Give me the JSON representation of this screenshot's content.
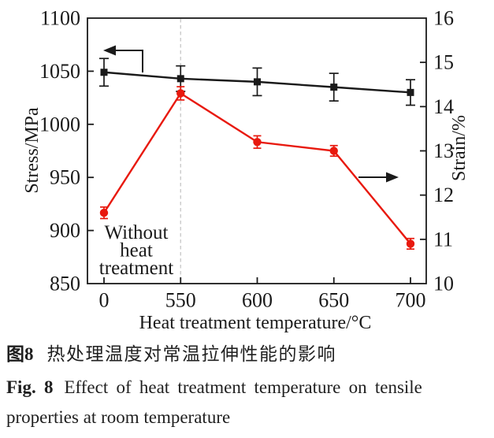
{
  "caption": {
    "zh_label": "图8",
    "zh_text": "热处理温度对常温拉伸性能的影响",
    "en_label": "Fig. 8",
    "en_line1": "Effect of heat treatment temperature on tensile",
    "en_line2": "properties at room temperature"
  },
  "chart_data": {
    "type": "line",
    "title": "",
    "xlabel": "Heat treatment temperature/°C",
    "ylabel_left": "Stress/MPa",
    "ylabel_right": "Strain/%",
    "categories": [
      "0",
      "550",
      "600",
      "650",
      "700"
    ],
    "x_axis_categorical": true,
    "ylim_left": [
      850,
      1100
    ],
    "yticks_left": [
      850,
      900,
      950,
      1000,
      1050,
      1100
    ],
    "ylim_right": [
      10,
      16
    ],
    "yticks_right": [
      10,
      11,
      12,
      13,
      14,
      15,
      16
    ],
    "grid": false,
    "legend": "none",
    "dashed_vline_at_category": "550",
    "annotation": {
      "lines": [
        "Without",
        "heat",
        "treatment"
      ]
    },
    "series": [
      {
        "name": "Stress",
        "axis": "left",
        "marker": "square",
        "color": "#1a1a1a",
        "values": [
          1049,
          1043,
          1040,
          1035,
          1030
        ],
        "errors": [
          13,
          12,
          13,
          13,
          12
        ]
      },
      {
        "name": "Strain",
        "axis": "right",
        "marker": "circle",
        "color": "#e8190e",
        "values": [
          11.6,
          14.3,
          13.2,
          13.0,
          10.9
        ],
        "errors": [
          0.13,
          0.15,
          0.14,
          0.12,
          0.12
        ]
      }
    ],
    "colors": {
      "ink": "#1a1a1a",
      "dashed_line": "#c6c6c6"
    }
  }
}
